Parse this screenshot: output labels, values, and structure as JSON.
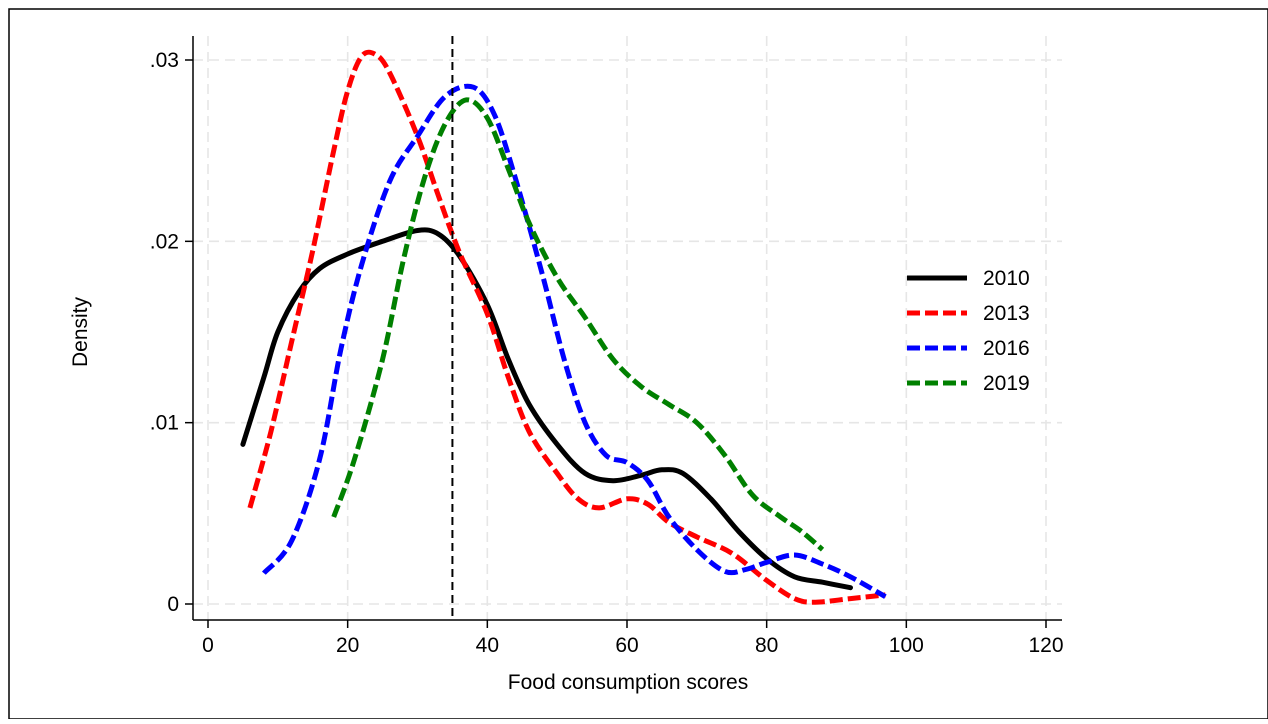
{
  "chart_data": {
    "type": "line",
    "xlabel": "Food consumption scores",
    "ylabel": "Density",
    "xlim": [
      0,
      120
    ],
    "ylim": [
      0,
      0.03
    ],
    "x_ticks": [
      0,
      20,
      40,
      60,
      80,
      100,
      120
    ],
    "x_tick_labels": [
      "0",
      "20",
      "40",
      "60",
      "80",
      "100",
      "120"
    ],
    "y_ticks": [
      0,
      0.01,
      0.02,
      0.03
    ],
    "y_tick_labels": [
      "0",
      ".01",
      ".02",
      ".03"
    ],
    "grid": true,
    "legend_position": "right",
    "reference_line": {
      "x": 35,
      "style": "dashed",
      "color": "#000000"
    },
    "series": [
      {
        "name": "2010",
        "color": "#000000",
        "dash": "solid",
        "points": [
          [
            5,
            0.0088
          ],
          [
            8,
            0.0125
          ],
          [
            10,
            0.015
          ],
          [
            13,
            0.0172
          ],
          [
            16,
            0.0185
          ],
          [
            20,
            0.0193
          ],
          [
            25,
            0.02
          ],
          [
            30,
            0.0206
          ],
          [
            33,
            0.0204
          ],
          [
            36,
            0.0192
          ],
          [
            40,
            0.0165
          ],
          [
            43,
            0.0135
          ],
          [
            46,
            0.011
          ],
          [
            50,
            0.0088
          ],
          [
            54,
            0.0072
          ],
          [
            58,
            0.0068
          ],
          [
            62,
            0.0071
          ],
          [
            65,
            0.0074
          ],
          [
            68,
            0.0072
          ],
          [
            72,
            0.0058
          ],
          [
            76,
            0.004
          ],
          [
            80,
            0.0025
          ],
          [
            84,
            0.0015
          ],
          [
            88,
            0.0012
          ],
          [
            92,
            0.0009
          ]
        ]
      },
      {
        "name": "2013",
        "color": "#ff0000",
        "dash": "dashed",
        "points": [
          [
            6,
            0.0053
          ],
          [
            9,
            0.0095
          ],
          [
            12,
            0.0145
          ],
          [
            15,
            0.0195
          ],
          [
            18,
            0.025
          ],
          [
            20,
            0.0283
          ],
          [
            22,
            0.0302
          ],
          [
            24,
            0.0303
          ],
          [
            26,
            0.0293
          ],
          [
            30,
            0.0258
          ],
          [
            33,
            0.0225
          ],
          [
            36,
            0.0194
          ],
          [
            40,
            0.016
          ],
          [
            43,
            0.0125
          ],
          [
            46,
            0.0095
          ],
          [
            50,
            0.0072
          ],
          [
            53,
            0.0058
          ],
          [
            56,
            0.0053
          ],
          [
            60,
            0.0058
          ],
          [
            63,
            0.0055
          ],
          [
            66,
            0.0045
          ],
          [
            70,
            0.0037
          ],
          [
            75,
            0.0028
          ],
          [
            80,
            0.0013
          ],
          [
            84,
            0.0003
          ],
          [
            87,
            0.0001
          ],
          [
            92,
            0.0003
          ],
          [
            97,
            0.0005
          ]
        ]
      },
      {
        "name": "2016",
        "color": "#0000ff",
        "dash": "dashed",
        "points": [
          [
            8,
            0.0017
          ],
          [
            12,
            0.0035
          ],
          [
            16,
            0.008
          ],
          [
            19,
            0.014
          ],
          [
            22,
            0.0187
          ],
          [
            26,
            0.0233
          ],
          [
            30,
            0.0258
          ],
          [
            34,
            0.028
          ],
          [
            38,
            0.0285
          ],
          [
            41,
            0.027
          ],
          [
            44,
            0.0235
          ],
          [
            48,
            0.018
          ],
          [
            51,
            0.0135
          ],
          [
            54,
            0.01
          ],
          [
            57,
            0.0082
          ],
          [
            60,
            0.0078
          ],
          [
            63,
            0.0068
          ],
          [
            66,
            0.0048
          ],
          [
            70,
            0.003
          ],
          [
            74,
            0.0018
          ],
          [
            77,
            0.0019
          ],
          [
            80,
            0.0023
          ],
          [
            84,
            0.0027
          ],
          [
            88,
            0.0022
          ],
          [
            92,
            0.0015
          ],
          [
            97,
            0.0004
          ]
        ]
      },
      {
        "name": "2019",
        "color": "#008000",
        "dash": "dashed",
        "points": [
          [
            18,
            0.0048
          ],
          [
            21,
            0.008
          ],
          [
            25,
            0.0135
          ],
          [
            28,
            0.019
          ],
          [
            31,
            0.0235
          ],
          [
            34,
            0.0265
          ],
          [
            37,
            0.0278
          ],
          [
            40,
            0.0268
          ],
          [
            43,
            0.024
          ],
          [
            46,
            0.021
          ],
          [
            50,
            0.018
          ],
          [
            54,
            0.0158
          ],
          [
            58,
            0.0135
          ],
          [
            62,
            0.012
          ],
          [
            66,
            0.011
          ],
          [
            70,
            0.01
          ],
          [
            74,
            0.0082
          ],
          [
            78,
            0.006
          ],
          [
            82,
            0.0048
          ],
          [
            85,
            0.004
          ],
          [
            88,
            0.003
          ]
        ]
      }
    ]
  }
}
